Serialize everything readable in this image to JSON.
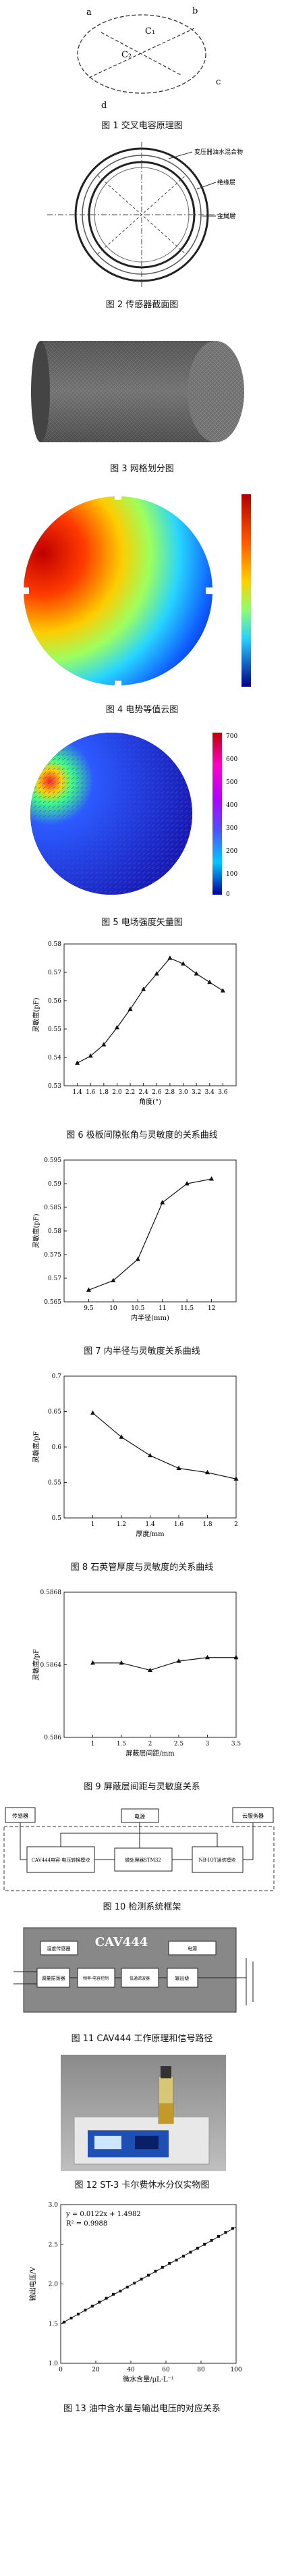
{
  "figures": [
    {
      "caption": "图 1  交叉电容原理图",
      "labels": {
        "a": "a",
        "b": "b",
        "c": "c",
        "d": "d",
        "c1": "C₁",
        "c2": "C₂"
      }
    },
    {
      "caption": "图 2  传感器截面图",
      "labels": {
        "mix": "变压器油水混合物",
        "insul": "绝缘层",
        "metal": "金属层"
      }
    },
    {
      "caption": "图 3  网格划分图"
    },
    {
      "caption": "图 4  电势等值云图"
    },
    {
      "caption": "图 5  电场强度矢量图",
      "colorbar": [
        "700",
        "600",
        "500",
        "400",
        "300",
        "200",
        "100",
        "0"
      ]
    },
    {
      "caption": "图 6  极板间隙张角与灵敏度的关系曲线"
    },
    {
      "caption": "图 7  内半径与灵敏度关系曲线"
    },
    {
      "caption": "图 8  石英管厚度与灵敏度的关系曲线"
    },
    {
      "caption": "图 9  屏蔽层间距与灵敏度关系"
    },
    {
      "caption": "图 10  检测系统框架",
      "blocks": {
        "sensor": "传感器",
        "cav": "CAV444电容-电压转换模块",
        "power": "电源",
        "mcu": "微处理器STM32",
        "nbiot": "NB-IOT通信模块",
        "host": "云服务器"
      }
    },
    {
      "caption": "图 11  CAV444 工作原理和信号路径",
      "blocks": {
        "chip": "CAV444",
        "temp": "温度传感器",
        "power": "电源",
        "ref": "调量振荡器",
        "sync": "频率-电容控制",
        "filter": "低通滤波器",
        "out": "输出级"
      }
    },
    {
      "caption": "图 12  ST-3 卡尔费休水分仪实物图"
    },
    {
      "caption": "图 13  油中含水量与输出电压的对应关系",
      "equation": "y = 0.0122x + 1.4982",
      "r2": "R² = 0.9988"
    }
  ],
  "chart_data": [
    {
      "type": "line",
      "xlabel": "角度(°)",
      "ylabel": "灵敏度(pF)",
      "xlim": [
        1.2,
        3.8
      ],
      "ylim": [
        0.53,
        0.58
      ],
      "x": [
        1.4,
        1.6,
        1.8,
        2.0,
        2.2,
        2.4,
        2.6,
        2.8,
        3.0,
        3.2,
        3.4,
        3.6
      ],
      "y": [
        0.538,
        0.5405,
        0.5445,
        0.5505,
        0.557,
        0.564,
        0.5695,
        0.575,
        0.573,
        0.5695,
        0.5665,
        0.5635
      ],
      "xticks": [
        "1.4",
        "1.6",
        "1.8",
        "2.0",
        "2.2",
        "2.4",
        "2.6",
        "2.8",
        "3.0",
        "3.2",
        "3.4",
        "3.6"
      ],
      "yticks": [
        "0.53",
        "0.54",
        "0.55",
        "0.56",
        "0.57",
        "0.58"
      ]
    },
    {
      "type": "line",
      "xlabel": "内半径(mm)",
      "ylabel": "灵敏度(pF)",
      "xlim": [
        9.0,
        12.5
      ],
      "ylim": [
        0.565,
        0.595
      ],
      "x": [
        9.5,
        10.0,
        10.5,
        11.0,
        11.5,
        12.0
      ],
      "y": [
        0.5675,
        0.5695,
        0.574,
        0.586,
        0.59,
        0.591
      ],
      "xticks": [
        "9.5",
        "10",
        "10.5",
        "11",
        "11.5",
        "12"
      ],
      "yticks": [
        "0.565",
        "0.57",
        "0.575",
        "0.58",
        "0.585",
        "0.59",
        "0.595"
      ]
    },
    {
      "type": "line",
      "xlabel": "厚度/mm",
      "ylabel": "灵敏度/pF",
      "xlim": [
        0.8,
        2.0
      ],
      "ylim": [
        0.5,
        0.7
      ],
      "x": [
        1.0,
        1.2,
        1.4,
        1.6,
        1.8,
        2.0
      ],
      "y": [
        0.648,
        0.614,
        0.588,
        0.57,
        0.564,
        0.555
      ],
      "xticks": [
        "1",
        "1.2",
        "1.4",
        "1.6",
        "1.8",
        "2"
      ],
      "yticks": [
        "0.5",
        "0.55",
        "0.6",
        "0.65",
        "0.7"
      ]
    },
    {
      "type": "line",
      "xlabel": "屏蔽层间距/mm",
      "ylabel": "灵敏度/pF",
      "xlim": [
        0.5,
        3.5
      ],
      "ylim": [
        0.586,
        0.5868
      ],
      "x": [
        1.0,
        1.5,
        2.0,
        2.5,
        3.0,
        3.5
      ],
      "y": [
        0.58641,
        0.58641,
        0.58637,
        0.58642,
        0.58644,
        0.58644
      ],
      "xticks": [
        "1",
        "1.5",
        "2",
        "2.5",
        "3",
        "3.5"
      ],
      "yticks": [
        "0.586",
        "0.5864",
        "0.5868"
      ]
    },
    {
      "type": "scatter",
      "xlabel": "微水含量/μL·L⁻¹",
      "ylabel": "输出电压/V",
      "xlim": [
        0,
        100
      ],
      "ylim": [
        1.0,
        3.0
      ],
      "x": [
        2,
        6,
        10,
        14,
        18,
        22,
        26,
        30,
        34,
        38,
        42,
        46,
        50,
        54,
        58,
        62,
        66,
        70,
        74,
        78,
        82,
        86,
        90,
        94,
        98
      ],
      "y": [
        1.52,
        1.57,
        1.62,
        1.67,
        1.72,
        1.77,
        1.82,
        1.87,
        1.91,
        1.96,
        2.01,
        2.06,
        2.11,
        2.16,
        2.21,
        2.26,
        2.3,
        2.35,
        2.4,
        2.45,
        2.5,
        2.55,
        2.6,
        2.65,
        2.7
      ],
      "xticks": [
        "0",
        "20",
        "40",
        "60",
        "80",
        "100"
      ],
      "yticks": [
        "1.0",
        "1.5",
        "2.0",
        "2.5",
        "3.0"
      ]
    }
  ]
}
